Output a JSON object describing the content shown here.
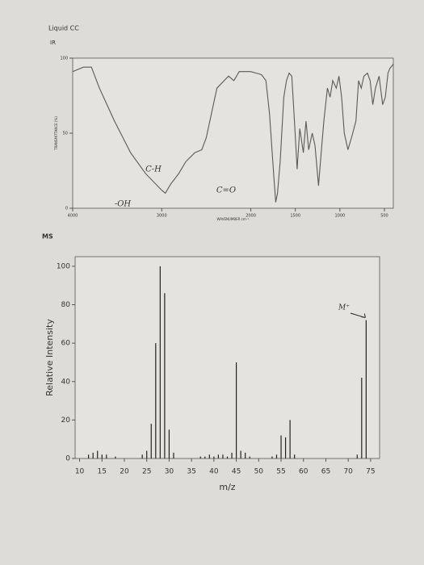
{
  "page": {
    "title": "Liquid CC"
  },
  "chart_data": [
    {
      "type": "line",
      "title": "IR",
      "x_label": "WAVENUMBER cm⁻¹",
      "y_label": "TRANSMITTANCE (%)",
      "x": [
        4000,
        3880,
        3790,
        3700,
        3530,
        3350,
        3180,
        3000,
        2960,
        2900,
        2810,
        2730,
        2630,
        2550,
        2500,
        2380,
        2250,
        2190,
        2130,
        2000,
        1940,
        1880,
        1830,
        1790,
        1740,
        1720,
        1700,
        1670,
        1630,
        1600,
        1570,
        1540,
        1510,
        1480,
        1450,
        1410,
        1380,
        1350,
        1310,
        1280,
        1240,
        1210,
        1180,
        1140,
        1110,
        1080,
        1040,
        1010,
        980,
        950,
        910,
        870,
        820,
        790,
        760,
        730,
        690,
        660,
        630,
        600,
        560,
        520,
        490,
        460,
        440,
        400
      ],
      "values": [
        91,
        94,
        94,
        80,
        58,
        37,
        23,
        12,
        10,
        16,
        23,
        31,
        37,
        39,
        47,
        80,
        88,
        85,
        91,
        91,
        90,
        89,
        85,
        63,
        20,
        4,
        10,
        31,
        74,
        85,
        90,
        88,
        58,
        26,
        53,
        37,
        58,
        39,
        50,
        42,
        15,
        37,
        58,
        80,
        74,
        85,
        80,
        88,
        74,
        50,
        39,
        47,
        58,
        85,
        80,
        88,
        90,
        85,
        69,
        80,
        88,
        69,
        74,
        90,
        93,
        96
      ],
      "color": "#5a5a5a",
      "xlim": [
        4000,
        400
      ],
      "xticks": [
        4000,
        3000,
        2000,
        1500,
        1000,
        500
      ],
      "ylim": [
        0,
        100
      ],
      "yticks": [
        0,
        50,
        100
      ],
      "annotations": [
        "-OH",
        "C-H",
        "C=O"
      ]
    },
    {
      "type": "stem",
      "title": "MS",
      "x_label": "m/z",
      "y_label": "Relative Intensity",
      "x": [
        12,
        13,
        14,
        15,
        16,
        18,
        24,
        25,
        26,
        27,
        28,
        29,
        30,
        31,
        37,
        38,
        39,
        40,
        41,
        42,
        43,
        44,
        45,
        46,
        47,
        48,
        53,
        54,
        55,
        56,
        57,
        58,
        72,
        73,
        74
      ],
      "values": [
        2,
        3,
        4,
        2,
        2,
        1,
        2,
        4,
        18,
        60,
        100,
        86,
        15,
        3,
        1,
        1,
        2,
        1,
        2,
        2,
        1,
        3,
        50,
        4,
        3,
        1,
        1,
        2,
        12,
        11,
        20,
        2,
        2,
        42,
        72
      ],
      "color": "#222222",
      "xlim": [
        9,
        77
      ],
      "xticks": [
        10,
        15,
        20,
        25,
        30,
        35,
        40,
        45,
        50,
        55,
        60,
        65,
        70,
        75
      ],
      "ylim": [
        0,
        105
      ],
      "yticks": [
        0,
        20,
        40,
        60,
        80,
        100
      ],
      "annotations": [
        "M⁺"
      ]
    }
  ]
}
